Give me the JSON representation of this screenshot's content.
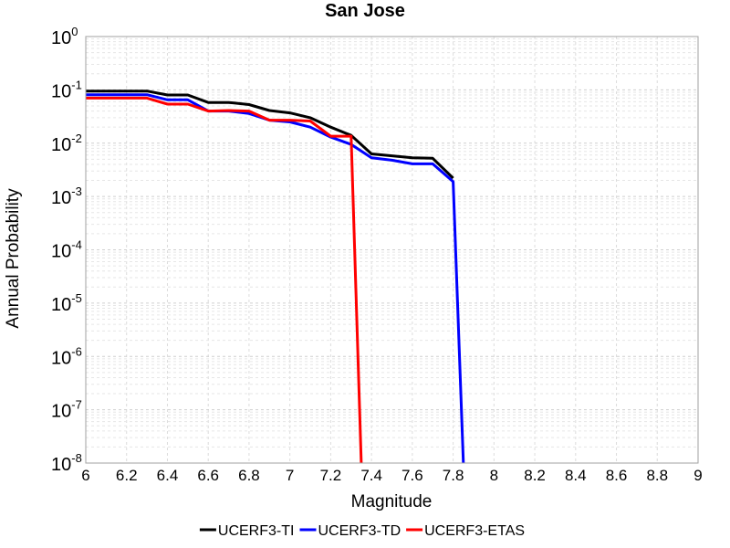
{
  "chart_data": {
    "type": "line",
    "title": "San Jose",
    "xlabel": "Magnitude",
    "ylabel": "Annual Probability",
    "xlim": [
      6,
      9
    ],
    "ylim": [
      1e-08,
      1
    ],
    "yscale": "log",
    "grid": true,
    "legend_position": "bottom",
    "x_ticks": [
      "6",
      "6.2",
      "6.4",
      "6.6",
      "6.8",
      "7",
      "7.2",
      "7.4",
      "7.6",
      "7.8",
      "8",
      "8.2",
      "8.4",
      "8.6",
      "8.8",
      "9"
    ],
    "y_ticks": [
      {
        "base": "10",
        "exp": "0"
      },
      {
        "base": "10",
        "exp": "-1"
      },
      {
        "base": "10",
        "exp": "-2"
      },
      {
        "base": "10",
        "exp": "-3"
      },
      {
        "base": "10",
        "exp": "-4"
      },
      {
        "base": "10",
        "exp": "-5"
      },
      {
        "base": "10",
        "exp": "-6"
      },
      {
        "base": "10",
        "exp": "-7"
      },
      {
        "base": "10",
        "exp": "-8"
      }
    ],
    "series": [
      {
        "name": "UCERF3-TI",
        "color": "#000000",
        "points": [
          [
            6.0,
            0.095
          ],
          [
            6.1,
            0.095
          ],
          [
            6.2,
            0.095
          ],
          [
            6.3,
            0.095
          ],
          [
            6.4,
            0.08
          ],
          [
            6.5,
            0.08
          ],
          [
            6.6,
            0.058
          ],
          [
            6.7,
            0.058
          ],
          [
            6.8,
            0.053
          ],
          [
            6.9,
            0.041
          ],
          [
            7.0,
            0.037
          ],
          [
            7.1,
            0.03
          ],
          [
            7.2,
            0.02
          ],
          [
            7.3,
            0.014
          ],
          [
            7.4,
            0.0063
          ],
          [
            7.5,
            0.0058
          ],
          [
            7.6,
            0.0053
          ],
          [
            7.7,
            0.0052
          ],
          [
            7.8,
            0.0022
          ]
        ]
      },
      {
        "name": "UCERF3-TD",
        "color": "#0000ff",
        "points": [
          [
            6.0,
            0.081
          ],
          [
            6.1,
            0.081
          ],
          [
            6.2,
            0.081
          ],
          [
            6.3,
            0.081
          ],
          [
            6.4,
            0.065
          ],
          [
            6.5,
            0.065
          ],
          [
            6.6,
            0.04
          ],
          [
            6.7,
            0.04
          ],
          [
            6.8,
            0.036
          ],
          [
            6.9,
            0.027
          ],
          [
            7.0,
            0.025
          ],
          [
            7.1,
            0.02
          ],
          [
            7.2,
            0.013
          ],
          [
            7.3,
            0.0095
          ],
          [
            7.4,
            0.0053
          ],
          [
            7.5,
            0.0048
          ],
          [
            7.6,
            0.0041
          ],
          [
            7.7,
            0.0041
          ],
          [
            7.8,
            0.0019
          ],
          [
            7.85,
            1e-08
          ]
        ]
      },
      {
        "name": "UCERF3-ETAS",
        "color": "#ff0000",
        "points": [
          [
            6.0,
            0.07
          ],
          [
            6.1,
            0.07
          ],
          [
            6.2,
            0.07
          ],
          [
            6.3,
            0.07
          ],
          [
            6.4,
            0.054
          ],
          [
            6.5,
            0.054
          ],
          [
            6.6,
            0.04
          ],
          [
            6.7,
            0.041
          ],
          [
            6.8,
            0.04
          ],
          [
            6.9,
            0.027
          ],
          [
            7.0,
            0.027
          ],
          [
            7.1,
            0.026
          ],
          [
            7.2,
            0.0135
          ],
          [
            7.3,
            0.0135
          ],
          [
            7.35,
            1e-08
          ]
        ]
      }
    ]
  }
}
